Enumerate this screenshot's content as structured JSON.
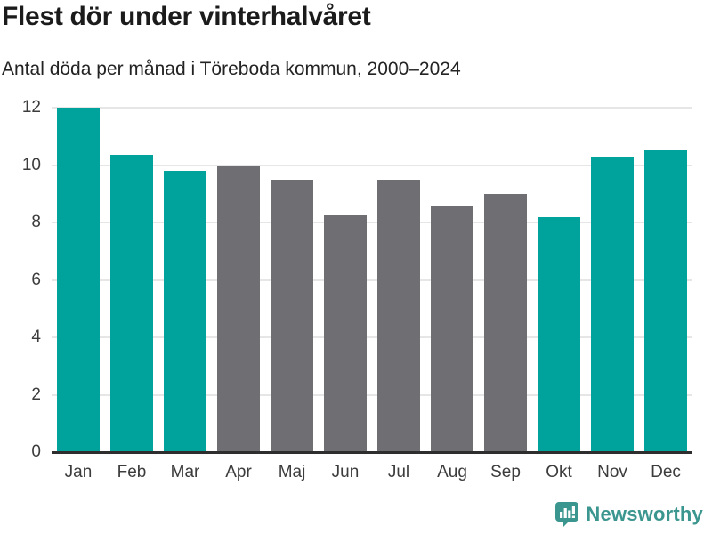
{
  "header": {
    "title": "Flest dör under vinterhalvåret",
    "subtitle": "Antal döda per månad i Töreboda kommun, 2000–2024"
  },
  "chart_data": {
    "type": "bar",
    "title": "Flest dör under vinterhalvåret",
    "subtitle": "Antal döda per månad i Töreboda kommun, 2000–2024",
    "categories": [
      "Jan",
      "Feb",
      "Mar",
      "Apr",
      "Maj",
      "Jun",
      "Jul",
      "Aug",
      "Sep",
      "Okt",
      "Nov",
      "Dec"
    ],
    "values": [
      12.0,
      10.35,
      9.8,
      10.0,
      9.5,
      8.25,
      9.5,
      8.6,
      9.0,
      8.2,
      10.3,
      10.5
    ],
    "highlighted": [
      true,
      true,
      true,
      false,
      false,
      false,
      false,
      false,
      false,
      true,
      true,
      true
    ],
    "highlight_color": "#00a39b",
    "base_color": "#6e6e73",
    "xlabel": "",
    "ylabel": "",
    "ylim": [
      0,
      12
    ],
    "yticks": [
      0,
      2,
      4,
      6,
      8,
      10,
      12
    ],
    "grid": true,
    "gridline_color": "#e6e6e6",
    "axis_line_color": "#2e2e2e",
    "legend_position": "none"
  },
  "footer": {
    "brand": "Newsworthy",
    "brand_color": "#3b968f",
    "logo_icon": "bar-chart-speech-bubble-icon"
  }
}
